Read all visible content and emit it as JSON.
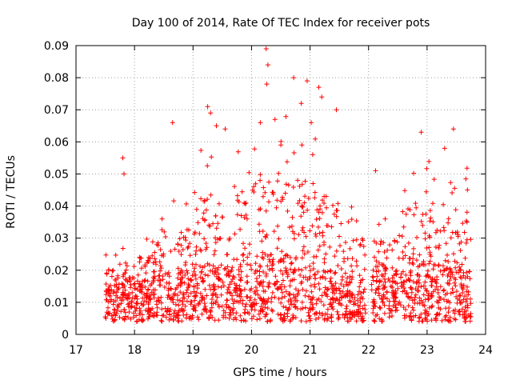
{
  "chart_data": {
    "type": "scatter",
    "title": "Day 100 of 2014, Rate Of TEC Index for receiver pots",
    "xlabel": "GPS time / hours",
    "ylabel": "ROTI / TECUs",
    "xlim": [
      17,
      24
    ],
    "ylim": [
      0,
      0.09
    ],
    "xticks": [
      "17",
      "18",
      "19",
      "20",
      "21",
      "22",
      "23",
      "24"
    ],
    "yticks": [
      "0",
      "0.01",
      "0.02",
      "0.03",
      "0.04",
      "0.05",
      "0.06",
      "0.07",
      "0.08",
      "0.09"
    ],
    "grid": true,
    "marker": "+",
    "color": "#ff0000",
    "series": [
      {
        "name": "ROTI",
        "segments": [
          {
            "x_start": 17.5,
            "x_end": 17.85,
            "base_max": 0.016,
            "upper_max": 0.027
          },
          {
            "x_start": 17.85,
            "x_end": 18.4,
            "base_max": 0.018,
            "upper_max": 0.032
          },
          {
            "x_start": 18.4,
            "x_end": 19.1,
            "base_max": 0.02,
            "upper_max": 0.045
          },
          {
            "x_start": 19.1,
            "x_end": 19.9,
            "base_max": 0.022,
            "upper_max": 0.06
          },
          {
            "x_start": 19.9,
            "x_end": 20.6,
            "base_max": 0.025,
            "upper_max": 0.068
          },
          {
            "x_start": 20.6,
            "x_end": 21.1,
            "base_max": 0.022,
            "upper_max": 0.065
          },
          {
            "x_start": 21.1,
            "x_end": 21.5,
            "base_max": 0.02,
            "upper_max": 0.058
          },
          {
            "x_start": 21.5,
            "x_end": 21.95,
            "base_max": 0.018,
            "upper_max": 0.04
          },
          {
            "x_start": 22.05,
            "x_end": 22.5,
            "base_max": 0.02,
            "upper_max": 0.04
          },
          {
            "x_start": 22.5,
            "x_end": 23.1,
            "base_max": 0.025,
            "upper_max": 0.055
          },
          {
            "x_start": 23.1,
            "x_end": 23.75,
            "base_max": 0.022,
            "upper_max": 0.052
          }
        ],
        "outliers": [
          {
            "x": 20.25,
            "y": 0.089
          },
          {
            "x": 20.28,
            "y": 0.084
          },
          {
            "x": 20.26,
            "y": 0.078
          },
          {
            "x": 20.72,
            "y": 0.08
          },
          {
            "x": 20.95,
            "y": 0.079
          },
          {
            "x": 21.15,
            "y": 0.077
          },
          {
            "x": 21.2,
            "y": 0.074
          },
          {
            "x": 20.85,
            "y": 0.072
          },
          {
            "x": 19.25,
            "y": 0.071
          },
          {
            "x": 19.3,
            "y": 0.069
          },
          {
            "x": 21.45,
            "y": 0.07
          },
          {
            "x": 18.65,
            "y": 0.066
          },
          {
            "x": 22.9,
            "y": 0.063
          },
          {
            "x": 23.45,
            "y": 0.064
          },
          {
            "x": 17.8,
            "y": 0.055
          },
          {
            "x": 17.82,
            "y": 0.05
          },
          {
            "x": 22.12,
            "y": 0.051
          },
          {
            "x": 23.3,
            "y": 0.058
          },
          {
            "x": 19.4,
            "y": 0.065
          },
          {
            "x": 19.55,
            "y": 0.064
          },
          {
            "x": 20.15,
            "y": 0.066
          },
          {
            "x": 20.4,
            "y": 0.067
          },
          {
            "x": 21.02,
            "y": 0.066
          }
        ],
        "seed": 20140410,
        "points_per_hour": 300
      }
    ]
  }
}
